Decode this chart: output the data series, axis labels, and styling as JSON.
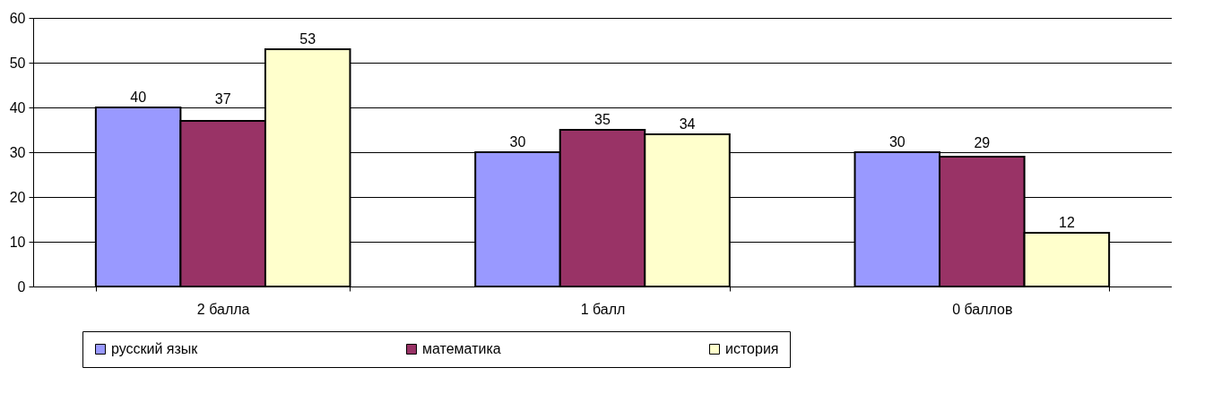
{
  "chart_data": {
    "type": "bar",
    "categories": [
      "2 балла",
      "1 балл",
      "0 баллов"
    ],
    "series": [
      {
        "name": "русский язык",
        "color": "#9999ff",
        "values": [
          40,
          30,
          30
        ]
      },
      {
        "name": "математика",
        "color": "#993366",
        "values": [
          37,
          35,
          29
        ]
      },
      {
        "name": "история",
        "color": "#ffffcc",
        "values": [
          53,
          34,
          12
        ]
      }
    ],
    "ylim": [
      0,
      60
    ],
    "yticks": [
      0,
      10,
      20,
      30,
      40,
      50,
      60
    ],
    "grid": "y",
    "legend": "bottom",
    "data_labels": true
  }
}
